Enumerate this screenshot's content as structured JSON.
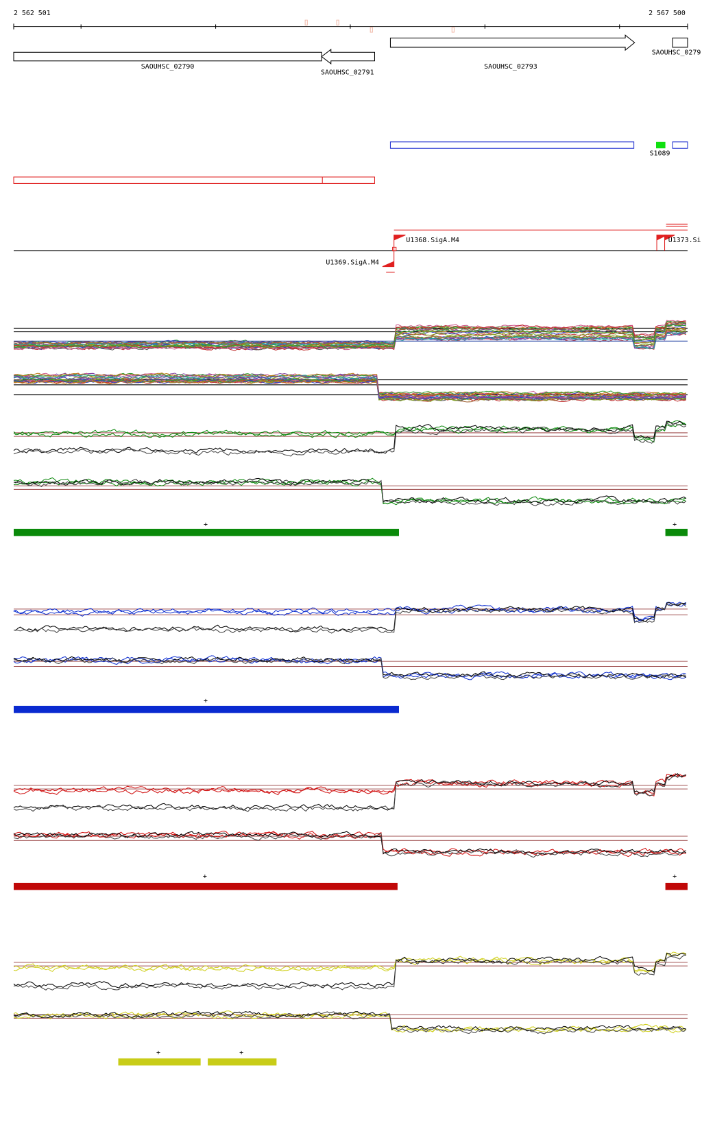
{
  "ruler": {
    "start": "2 562 501",
    "end": "2 567 500"
  },
  "genes": [
    {
      "label": "SAOUHSC_02790"
    },
    {
      "label": "SAOUHSC_02791"
    },
    {
      "label": "SAOUHSC_02793"
    },
    {
      "label": "SAOUHSC_0279"
    }
  ],
  "features": [
    {
      "label": "S1089"
    }
  ],
  "promoters": [
    {
      "label": "U1368.SigA.M4"
    },
    {
      "label": "U1369.SigA.M4"
    },
    {
      "label": "U1373.Si"
    }
  ],
  "segment_marks": [
    "+",
    "+",
    "+",
    "+",
    "+",
    "+",
    "+"
  ]
}
